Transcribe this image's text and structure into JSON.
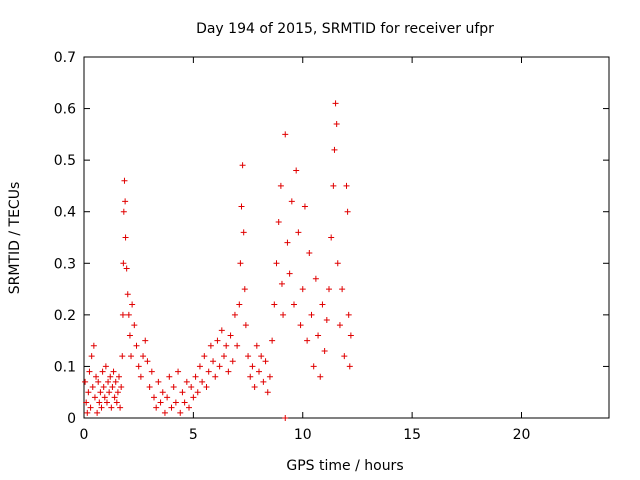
{
  "chart_data": {
    "type": "scatter",
    "title": "Day 194 of 2015, SRMTID for receiver ufpr",
    "xlabel": "GPS time / hours",
    "ylabel": "SRMTID / TECUs",
    "xlim": [
      0,
      24
    ],
    "ylim": [
      0,
      0.7
    ],
    "xticks": [
      0,
      5,
      10,
      15,
      20
    ],
    "yticks": [
      0,
      0.1,
      0.2,
      0.3,
      0.4,
      0.5,
      0.6,
      0.7
    ],
    "ytick_labels": [
      "0",
      "0.1",
      "0.2",
      "0.3",
      "0.4",
      "0.5",
      "0.6",
      "0.7"
    ],
    "grid": false,
    "marker": "+",
    "color": "#e00000",
    "series": [
      {
        "name": "SRMTID",
        "points": [
          [
            0.05,
            0.07
          ],
          [
            0.1,
            0.03
          ],
          [
            0.15,
            0.01
          ],
          [
            0.2,
            0.05
          ],
          [
            0.25,
            0.09
          ],
          [
            0.3,
            0.02
          ],
          [
            0.35,
            0.12
          ],
          [
            0.4,
            0.06
          ],
          [
            0.45,
            0.14
          ],
          [
            0.5,
            0.04
          ],
          [
            0.55,
            0.08
          ],
          [
            0.6,
            0.01
          ],
          [
            0.65,
            0.07
          ],
          [
            0.7,
            0.03
          ],
          [
            0.75,
            0.05
          ],
          [
            0.8,
            0.02
          ],
          [
            0.85,
            0.09
          ],
          [
            0.9,
            0.06
          ],
          [
            0.95,
            0.04
          ],
          [
            1.0,
            0.1
          ],
          [
            1.05,
            0.03
          ],
          [
            1.1,
            0.07
          ],
          [
            1.15,
            0.05
          ],
          [
            1.2,
            0.08
          ],
          [
            1.25,
            0.02
          ],
          [
            1.3,
            0.06
          ],
          [
            1.35,
            0.09
          ],
          [
            1.4,
            0.04
          ],
          [
            1.45,
            0.07
          ],
          [
            1.5,
            0.03
          ],
          [
            1.55,
            0.05
          ],
          [
            1.6,
            0.08
          ],
          [
            1.65,
            0.02
          ],
          [
            1.7,
            0.06
          ],
          [
            1.75,
            0.12
          ],
          [
            1.78,
            0.2
          ],
          [
            1.8,
            0.3
          ],
          [
            1.82,
            0.4
          ],
          [
            1.85,
            0.46
          ],
          [
            1.88,
            0.42
          ],
          [
            1.9,
            0.35
          ],
          [
            1.95,
            0.29
          ],
          [
            2.0,
            0.24
          ],
          [
            2.05,
            0.2
          ],
          [
            2.1,
            0.16
          ],
          [
            2.15,
            0.12
          ],
          [
            2.2,
            0.22
          ],
          [
            2.3,
            0.18
          ],
          [
            2.4,
            0.14
          ],
          [
            2.5,
            0.1
          ],
          [
            2.6,
            0.08
          ],
          [
            2.7,
            0.12
          ],
          [
            2.8,
            0.15
          ],
          [
            2.9,
            0.11
          ],
          [
            3.0,
            0.06
          ],
          [
            3.1,
            0.09
          ],
          [
            3.2,
            0.04
          ],
          [
            3.3,
            0.02
          ],
          [
            3.4,
            0.07
          ],
          [
            3.5,
            0.03
          ],
          [
            3.6,
            0.05
          ],
          [
            3.7,
            0.01
          ],
          [
            3.8,
            0.04
          ],
          [
            3.9,
            0.08
          ],
          [
            4.0,
            0.02
          ],
          [
            4.1,
            0.06
          ],
          [
            4.2,
            0.03
          ],
          [
            4.3,
            0.09
          ],
          [
            4.4,
            0.01
          ],
          [
            4.5,
            0.05
          ],
          [
            4.6,
            0.03
          ],
          [
            4.7,
            0.07
          ],
          [
            4.8,
            0.02
          ],
          [
            4.9,
            0.06
          ],
          [
            5.0,
            0.04
          ],
          [
            5.1,
            0.08
          ],
          [
            5.2,
            0.05
          ],
          [
            5.3,
            0.1
          ],
          [
            5.4,
            0.07
          ],
          [
            5.5,
            0.12
          ],
          [
            5.6,
            0.06
          ],
          [
            5.7,
            0.09
          ],
          [
            5.8,
            0.14
          ],
          [
            5.9,
            0.11
          ],
          [
            6.0,
            0.08
          ],
          [
            6.1,
            0.15
          ],
          [
            6.2,
            0.1
          ],
          [
            6.3,
            0.17
          ],
          [
            6.4,
            0.12
          ],
          [
            6.5,
            0.14
          ],
          [
            6.6,
            0.09
          ],
          [
            6.7,
            0.16
          ],
          [
            6.8,
            0.11
          ],
          [
            6.9,
            0.2
          ],
          [
            7.0,
            0.14
          ],
          [
            7.1,
            0.22
          ],
          [
            7.15,
            0.3
          ],
          [
            7.2,
            0.41
          ],
          [
            7.25,
            0.49
          ],
          [
            7.3,
            0.36
          ],
          [
            7.35,
            0.25
          ],
          [
            7.4,
            0.18
          ],
          [
            7.5,
            0.12
          ],
          [
            7.6,
            0.08
          ],
          [
            7.7,
            0.1
          ],
          [
            7.8,
            0.06
          ],
          [
            7.9,
            0.14
          ],
          [
            8.0,
            0.09
          ],
          [
            8.1,
            0.12
          ],
          [
            8.2,
            0.07
          ],
          [
            8.3,
            0.11
          ],
          [
            8.4,
            0.05
          ],
          [
            8.5,
            0.08
          ],
          [
            8.6,
            0.15
          ],
          [
            8.7,
            0.22
          ],
          [
            8.8,
            0.3
          ],
          [
            8.9,
            0.38
          ],
          [
            9.0,
            0.45
          ],
          [
            9.05,
            0.26
          ],
          [
            9.1,
            0.2
          ],
          [
            9.2,
            0.55
          ],
          [
            9.3,
            0.34
          ],
          [
            9.4,
            0.28
          ],
          [
            9.5,
            0.42
          ],
          [
            9.6,
            0.22
          ],
          [
            9.7,
            0.48
          ],
          [
            9.8,
            0.36
          ],
          [
            9.9,
            0.18
          ],
          [
            10.0,
            0.25
          ],
          [
            10.1,
            0.41
          ],
          [
            10.2,
            0.15
          ],
          [
            10.3,
            0.32
          ],
          [
            10.4,
            0.2
          ],
          [
            10.5,
            0.1
          ],
          [
            10.6,
            0.27
          ],
          [
            10.7,
            0.16
          ],
          [
            10.8,
            0.08
          ],
          [
            10.9,
            0.22
          ],
          [
            11.0,
            0.13
          ],
          [
            11.1,
            0.19
          ],
          [
            11.2,
            0.25
          ],
          [
            11.3,
            0.35
          ],
          [
            11.4,
            0.45
          ],
          [
            11.45,
            0.52
          ],
          [
            11.5,
            0.61
          ],
          [
            11.55,
            0.57
          ],
          [
            11.6,
            0.3
          ],
          [
            11.7,
            0.18
          ],
          [
            11.8,
            0.25
          ],
          [
            11.9,
            0.12
          ],
          [
            12.0,
            0.45
          ],
          [
            12.05,
            0.4
          ],
          [
            12.1,
            0.2
          ],
          [
            12.15,
            0.1
          ],
          [
            12.2,
            0.16
          ],
          [
            9.2,
            0.0
          ]
        ]
      }
    ]
  }
}
